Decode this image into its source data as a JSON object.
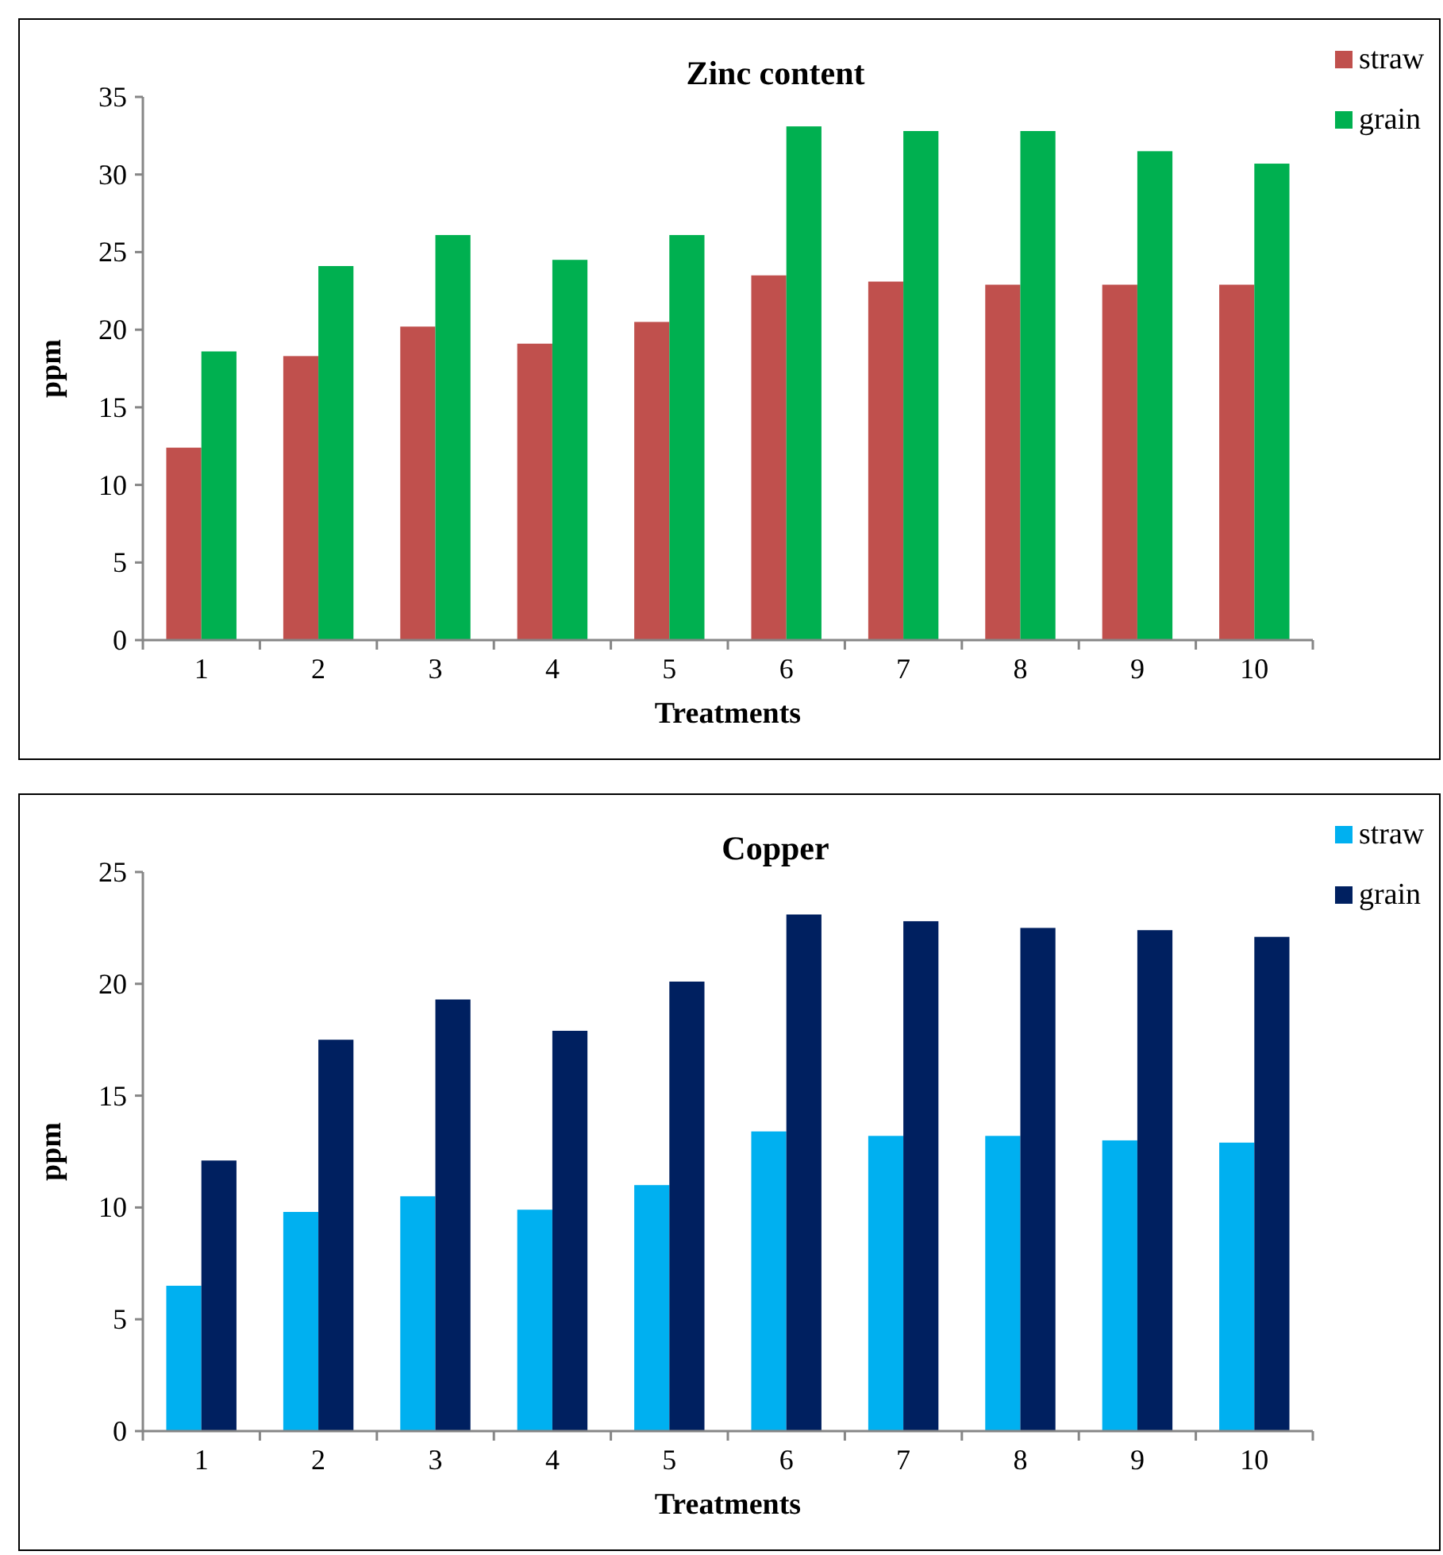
{
  "chart_data": [
    {
      "type": "bar",
      "title": "Zinc content",
      "xlabel": "Treatments",
      "ylabel": "ppm",
      "categories": [
        "1",
        "2",
        "3",
        "4",
        "5",
        "6",
        "7",
        "8",
        "9",
        "10"
      ],
      "series": [
        {
          "name": "straw",
          "color": "#c0504d",
          "values": [
            12.4,
            18.3,
            20.2,
            19.1,
            20.5,
            23.5,
            23.1,
            22.9,
            22.9,
            22.9
          ]
        },
        {
          "name": "grain",
          "color": "#00b050",
          "values": [
            18.6,
            24.1,
            26.1,
            24.5,
            26.1,
            33.1,
            32.8,
            32.8,
            31.5,
            30.7
          ]
        }
      ],
      "ylim": [
        0,
        35
      ],
      "yticks": [
        0,
        5,
        10,
        15,
        20,
        25,
        30,
        35
      ],
      "legend": "top right"
    },
    {
      "type": "bar",
      "title": "Copper",
      "xlabel": "Treatments",
      "ylabel": "ppm",
      "categories": [
        "1",
        "2",
        "3",
        "4",
        "5",
        "6",
        "7",
        "8",
        "9",
        "10"
      ],
      "series": [
        {
          "name": "straw",
          "color": "#00b0f0",
          "values": [
            6.5,
            9.8,
            10.5,
            9.9,
            11.0,
            13.4,
            13.2,
            13.2,
            13.0,
            12.9
          ]
        },
        {
          "name": "grain",
          "color": "#002060",
          "values": [
            12.1,
            17.5,
            19.3,
            17.9,
            20.1,
            23.1,
            22.8,
            22.5,
            22.4,
            22.1
          ]
        }
      ],
      "ylim": [
        0,
        25
      ],
      "yticks": [
        0,
        5,
        10,
        15,
        20,
        25
      ],
      "legend": "top right"
    }
  ]
}
